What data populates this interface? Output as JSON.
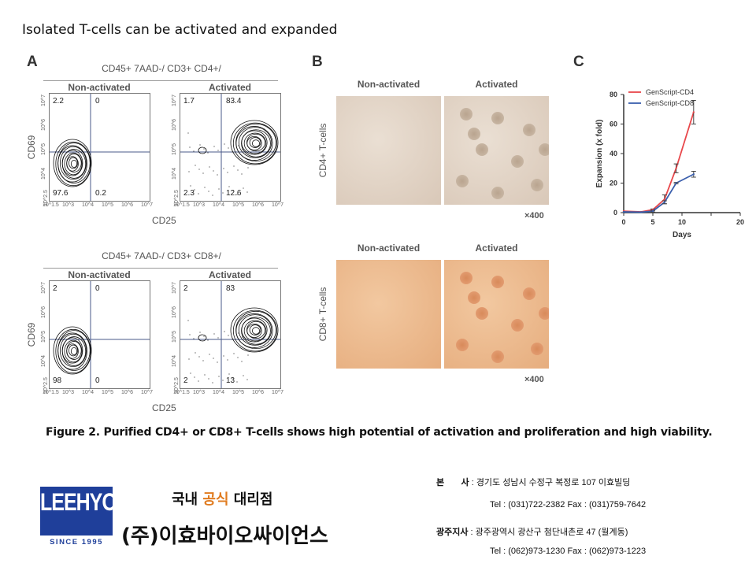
{
  "title": "Isolated T-cells can be activated and expanded",
  "panel_a": {
    "label": "A",
    "top": {
      "header": "CD45+ 7AAD-/ CD3+ CD4+/",
      "plots": [
        {
          "name": "Non-activated",
          "q": [
            "2.2",
            "0",
            "97.6",
            "0.2"
          ]
        },
        {
          "name": "Activated",
          "q": [
            "1.7",
            "83.4",
            "2.3",
            "12.6"
          ]
        }
      ]
    },
    "bottom": {
      "header": "CD45+ 7AAD-/ CD3+ CD8+/",
      "plots": [
        {
          "name": "Non-activated",
          "q": [
            "2",
            "0",
            "98",
            "0"
          ]
        },
        {
          "name": "Activated",
          "q": [
            "2",
            "83",
            "2",
            "13"
          ]
        }
      ]
    },
    "y_label": "CD69",
    "x_label": "CD25",
    "x_ticks": [
      "10^1.5",
      "10^3",
      "10^4",
      "10^5",
      "10^6",
      "10^7"
    ],
    "y_ticks": [
      "10^2.5",
      "10^4",
      "10^5",
      "10^6",
      "10^7"
    ]
  },
  "panel_b": {
    "label": "B",
    "rows": [
      {
        "label": "CD4+ T-cells",
        "cols": [
          "Non-activated",
          "Activated"
        ],
        "mag": "×400"
      },
      {
        "label": "CD8+ T-cells",
        "cols": [
          "Non-activated",
          "Activated"
        ],
        "mag": "×400"
      }
    ]
  },
  "panel_c": {
    "label": "C"
  },
  "chart_data": {
    "type": "line",
    "xlabel": "Days",
    "ylabel": "Expansion (x fold)",
    "xlim": [
      0,
      20
    ],
    "ylim": [
      0,
      80
    ],
    "x_ticks": [
      0,
      5,
      10,
      20
    ],
    "x_tick_labels": [
      "0",
      "5",
      "10",
      "20"
    ],
    "y_ticks": [
      0,
      20,
      40,
      60,
      80
    ],
    "legend": "top-left",
    "series": [
      {
        "name": "GenScript-CD4",
        "color": "#e8474b",
        "x": [
          0,
          3,
          5,
          7,
          9,
          12
        ],
        "y": [
          1,
          0.5,
          2,
          9,
          30,
          68
        ],
        "err": [
          0,
          0,
          0.5,
          3,
          3,
          8
        ]
      },
      {
        "name": "GenScript-CD8",
        "color": "#3b5fad",
        "x": [
          0,
          3,
          5,
          7,
          9,
          12
        ],
        "y": [
          0.5,
          0.3,
          1,
          7,
          20,
          26
        ],
        "err": [
          0,
          0,
          0.5,
          1,
          0.5,
          2
        ]
      }
    ]
  },
  "caption": "Figure 2. Purified CD4+ or CD8+ T-cells shows high potential of activation and proliferation and high viability.",
  "footer": {
    "logo_text": "LEEHYO",
    "logo_since": "SINCE 1995",
    "tagline_pre": "국내 ",
    "tagline_hl": "공식",
    "tagline_post": " 대리점",
    "company": "(주)이효바이오싸이언스",
    "hq_label": "본       사",
    "hq_addr": ": 경기도 성남시 수정구 복정로 107 이효빌딩",
    "hq_tel": "Tel : (031)722-2382   Fax : (031)759-7642",
    "br_label": "광주지사",
    "br_addr": ": 광주광역시 광산구 첨단내촌로 47 (월계동)",
    "br_tel": "Tel : (062)973-1230   Fax : (062)973-1223",
    "accent": "#e07b1f",
    "logo_color": "#1f3f9a"
  }
}
